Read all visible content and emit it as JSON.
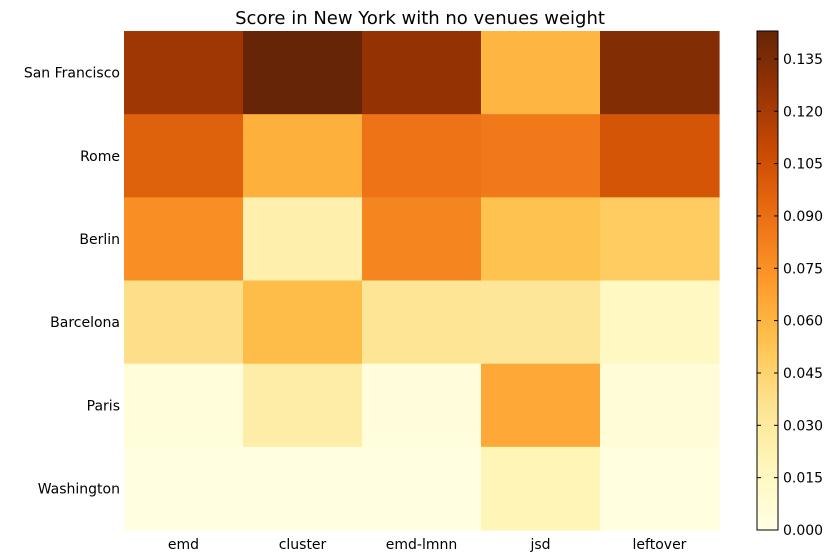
{
  "chart_data": {
    "type": "heatmap",
    "title": "Score in New York with no venues weight",
    "xlabel": "",
    "ylabel": "",
    "colormap": "YlOrBr",
    "x_categories": [
      "emd",
      "cluster",
      "emd-lmnn",
      "jsd",
      "leftover"
    ],
    "y_categories": [
      "San Francisco",
      "Rome",
      "Berlin",
      "Barcelona",
      "Paris",
      "Washington"
    ],
    "values": [
      [
        0.123,
        0.143,
        0.127,
        0.06,
        0.133
      ],
      [
        0.097,
        0.062,
        0.088,
        0.085,
        0.103
      ],
      [
        0.076,
        0.024,
        0.08,
        0.054,
        0.049
      ],
      [
        0.038,
        0.057,
        0.034,
        0.033,
        0.015
      ],
      [
        0.005,
        0.027,
        0.004,
        0.065,
        0.006
      ],
      [
        0.002,
        0.002,
        0.002,
        0.02,
        0.003
      ]
    ],
    "colorbar": {
      "range": [
        0.0,
        0.143
      ],
      "ticks": [
        0.0,
        0.015,
        0.03,
        0.045,
        0.06,
        0.075,
        0.09,
        0.105,
        0.12,
        0.135
      ],
      "tick_labels": [
        "0.000",
        "0.015",
        "0.030",
        "0.045",
        "0.060",
        "0.075",
        "0.090",
        "0.105",
        "0.120",
        "0.135"
      ]
    },
    "grid": false,
    "legend": "colorbar-right"
  }
}
